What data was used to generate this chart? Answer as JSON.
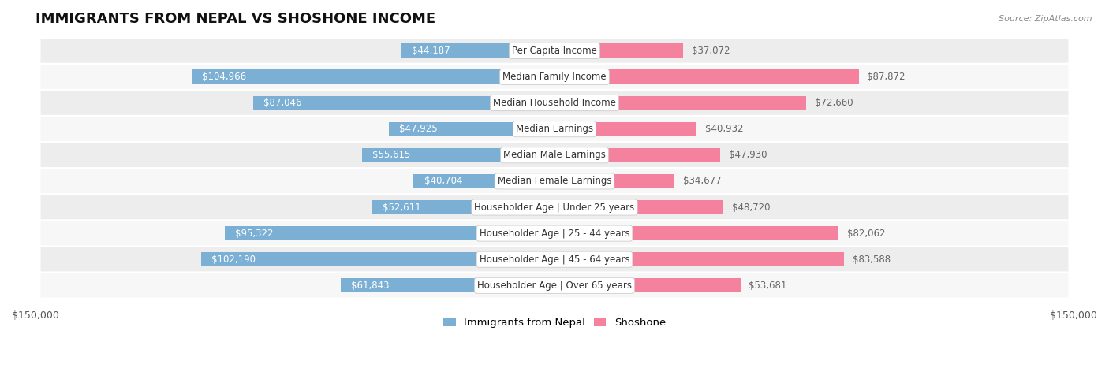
{
  "title": "IMMIGRANTS FROM NEPAL VS SHOSHONE INCOME",
  "source": "Source: ZipAtlas.com",
  "categories": [
    "Per Capita Income",
    "Median Family Income",
    "Median Household Income",
    "Median Earnings",
    "Median Male Earnings",
    "Median Female Earnings",
    "Householder Age | Under 25 years",
    "Householder Age | 25 - 44 years",
    "Householder Age | 45 - 64 years",
    "Householder Age | Over 65 years"
  ],
  "nepal_values": [
    44187,
    104966,
    87046,
    47925,
    55615,
    40704,
    52611,
    95322,
    102190,
    61843
  ],
  "shoshone_values": [
    37072,
    87872,
    72660,
    40932,
    47930,
    34677,
    48720,
    82062,
    83588,
    53681
  ],
  "nepal_labels": [
    "$44,187",
    "$104,966",
    "$87,046",
    "$47,925",
    "$55,615",
    "$40,704",
    "$52,611",
    "$95,322",
    "$102,190",
    "$61,843"
  ],
  "shoshone_labels": [
    "$37,072",
    "$87,872",
    "$72,660",
    "$40,932",
    "$47,930",
    "$34,677",
    "$48,720",
    "$82,062",
    "$83,588",
    "$53,681"
  ],
  "nepal_color": "#7bafd4",
  "shoshone_color": "#f4829e",
  "max_value": 150000,
  "row_bg_even": "#ededee",
  "row_bg_odd": "#f7f7f8",
  "legend_nepal": "Immigrants from Nepal",
  "legend_shoshone": "Shoshone",
  "title_fontsize": 13,
  "label_fontsize": 8.5,
  "category_fontsize": 8.5,
  "axis_label": "$150,000",
  "inside_threshold": 30000
}
